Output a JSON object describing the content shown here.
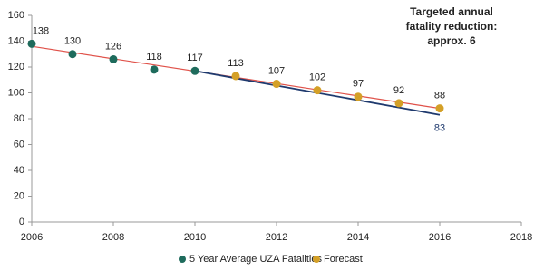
{
  "chart_data": {
    "type": "scatter",
    "series": [
      {
        "name": "5 Year Average UZA Fatalities",
        "color": "#1e6b5c",
        "x": [
          2006,
          2007,
          2008,
          2009,
          2010
        ],
        "values": [
          138,
          130,
          126,
          118,
          117
        ]
      },
      {
        "name": "Forecast",
        "color": "#d4a027",
        "x": [
          2011,
          2012,
          2013,
          2014,
          2015,
          2016
        ],
        "values": [
          113,
          107,
          102,
          97,
          92,
          88
        ]
      }
    ],
    "trend_line": {
      "color": "#e0524a",
      "x": [
        2006,
        2016
      ],
      "values": [
        136,
        88
      ]
    },
    "target_line": {
      "color": "#1f3a6e",
      "x": [
        2010,
        2016
      ],
      "values": [
        117,
        83
      ]
    },
    "annotation": [
      "Targeted annual",
      "fatality reduction:",
      "approx. 6"
    ],
    "xlim": [
      2006,
      2018
    ],
    "xticks": [
      2006,
      2008,
      2010,
      2012,
      2014,
      2016,
      2018
    ],
    "ylim": [
      0,
      160
    ],
    "yticks": [
      0,
      20,
      40,
      60,
      80,
      100,
      120,
      140,
      160
    ],
    "grid": false,
    "legend": "bottom"
  }
}
